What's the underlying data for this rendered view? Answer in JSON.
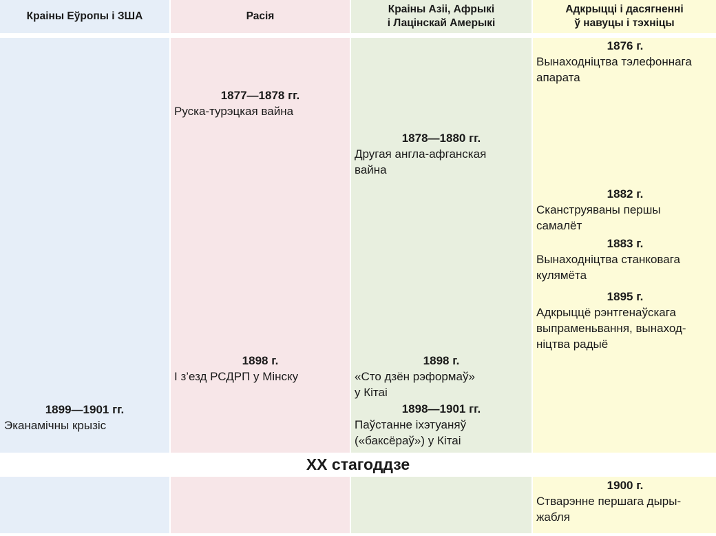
{
  "headers": {
    "europe": "Краіны Еўропы і ЗША",
    "russia": "Расія",
    "asia": [
      "Краіны Азіі, Афрыкі",
      "і Лацінскай Амерыкі"
    ],
    "science": [
      "Адкрыцці і дасягненні",
      "ў навуцы і тэхніцы"
    ]
  },
  "europe": [
    {
      "year": "1899—1901 гг.",
      "text": [
        "Эканамічны крызіс"
      ]
    }
  ],
  "russia": [
    {
      "year": "1877—1878 гг.",
      "text": [
        "Руска-турэцкая вайна"
      ]
    },
    {
      "year": "1898 г.",
      "text": [
        "І з’езд РСДРП у Мінску"
      ]
    }
  ],
  "asia": [
    {
      "year": "1878—1880 гг.",
      "text": [
        "Другая англа-афганская",
        "вайна"
      ]
    },
    {
      "year": "1898 г.",
      "text": [
        "«Сто дзён рэформаў»",
        "у Кітаі"
      ]
    },
    {
      "year": "1898—1901 гг.",
      "text": [
        "Паўстанне іхэтуаняў",
        "(«баксёраў») у Кітаі"
      ]
    }
  ],
  "science": [
    {
      "year": "1876 г.",
      "text": [
        "Вынаходніцтва  тэлефоннага",
        "апарата"
      ]
    },
    {
      "year": "1882 г.",
      "text": [
        "Сканструяваны першы",
        "самалёт"
      ]
    },
    {
      "year": "1883 г.",
      "text": [
        "Вынаходніцтва станковага",
        "кулямёта"
      ]
    },
    {
      "year": "1895 г.",
      "text": [
        "Адкрыццё рэнтгенаўскага",
        "выпраменьвання, вынаход-",
        "ніцтва радыё"
      ]
    }
  ],
  "century_divider": "XX стагоддзе",
  "science_xx": [
    {
      "year": "1900 г.",
      "text": [
        "Стварэнне першага дыры-",
        "жабля"
      ]
    }
  ]
}
